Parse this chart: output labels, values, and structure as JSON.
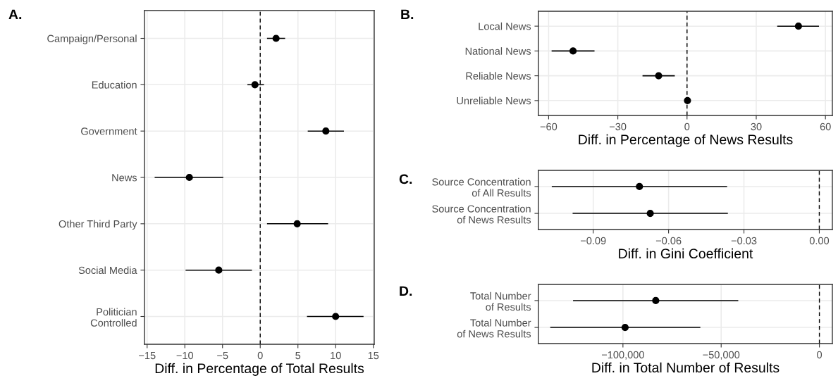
{
  "chart_data": [
    {
      "type": "scatter",
      "orientation": "horizontal",
      "title": "A.",
      "xlabel": "Diff. in Percentage of Total Results",
      "categories": [
        "Campaign/Personal",
        "Education",
        "Government",
        "News",
        "Other Third Party",
        "Social Media",
        "Politician\nControlled"
      ],
      "values": [
        2.1,
        -0.7,
        8.7,
        -9.4,
        4.9,
        -5.5,
        10.0
      ],
      "errors": [
        [
          0.9,
          3.3
        ],
        [
          -1.7,
          0.5
        ],
        [
          6.3,
          11.1
        ],
        [
          -14.0,
          -4.9
        ],
        [
          0.9,
          9.0
        ],
        [
          -9.9,
          -1.1
        ],
        [
          6.2,
          13.7
        ]
      ],
      "color": "#000000",
      "marker": "circle",
      "grid": true,
      "xlim": [
        -15.35,
        15.12
      ],
      "xticks": [
        {
          "value": -15,
          "label": "−15"
        },
        {
          "value": -10,
          "label": "−10"
        },
        {
          "value": -5,
          "label": "−5"
        },
        0,
        5,
        10,
        15
      ],
      "ref_lines": [
        {
          "axis": "x",
          "value": 0,
          "line_style": "dashed",
          "color": "#000000"
        }
      ]
    },
    {
      "type": "scatter",
      "orientation": "horizontal",
      "title": "B.",
      "xlabel": "Diff. in Percentage of News Results",
      "categories": [
        "Local News",
        "National News",
        "Reliable News",
        "Unreliable News"
      ],
      "values": [
        48.3,
        -49.4,
        -12.3,
        0.2
      ],
      "errors": [
        [
          39.1,
          57.2
        ],
        [
          -58.7,
          -40.1
        ],
        [
          -19.3,
          -5.3
        ],
        null
      ],
      "color": "#000000",
      "marker": "circle",
      "grid": true,
      "xlim": [
        -64.4,
        63.0
      ],
      "xticks": [
        {
          "value": -60,
          "label": "−60"
        },
        {
          "value": -30,
          "label": "−30"
        },
        0,
        30,
        60
      ],
      "ref_lines": [
        {
          "axis": "x",
          "value": 0,
          "line_style": "dashed",
          "color": "#000000"
        }
      ]
    },
    {
      "type": "scatter",
      "orientation": "horizontal",
      "title": "C.",
      "xlabel": "Diff. in Gini Coefficient",
      "categories": [
        "Source Concentration\nof All Results",
        "Source Concentration\nof News Results"
      ],
      "values": [
        -0.0716,
        -0.0673
      ],
      "errors": [
        [
          -0.1065,
          -0.0367
        ],
        [
          -0.0982,
          -0.0364
        ]
      ],
      "color": "#000000",
      "marker": "circle",
      "grid": true,
      "xlim": [
        -0.1118,
        0.0052
      ],
      "xticks": [
        {
          "value": -0.09,
          "label": "−0.09"
        },
        {
          "value": -0.06,
          "label": "−0.06"
        },
        {
          "value": -0.03,
          "label": "−0.03"
        },
        {
          "value": 0,
          "label": "0.00"
        }
      ],
      "ref_lines": [
        {
          "axis": "x",
          "value": 0,
          "line_style": "dashed",
          "color": "#000000"
        }
      ]
    },
    {
      "type": "scatter",
      "orientation": "horizontal",
      "title": "D.",
      "xlabel": "Diff. in Total Number of Results",
      "categories": [
        "Total Number\nof Results",
        "Total Number\nof News Results"
      ],
      "values": [
        -83300,
        -98900
      ],
      "errors": [
        [
          -125400,
          -41300
        ],
        [
          -137000,
          -60600
        ]
      ],
      "color": "#000000",
      "marker": "circle",
      "grid": true,
      "xlim": [
        -143000,
        6600
      ],
      "xticks": [
        {
          "value": -100000,
          "label": "−100,000"
        },
        {
          "value": -50000,
          "label": "−50,000"
        },
        0
      ],
      "ref_lines": [
        {
          "axis": "x",
          "value": 0,
          "line_style": "dashed",
          "color": "#000000"
        }
      ]
    }
  ]
}
